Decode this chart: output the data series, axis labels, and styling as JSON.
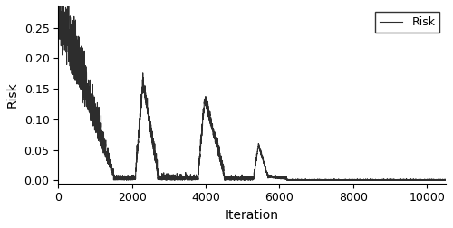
{
  "title": "",
  "xlabel": "Iteration",
  "ylabel": "Risk",
  "legend_label": "Risk",
  "xlim": [
    0,
    10500
  ],
  "ylim": [
    -0.005,
    0.285
  ],
  "yticks": [
    0.0,
    0.05,
    0.1,
    0.15,
    0.2,
    0.25
  ],
  "xticks": [
    0,
    2000,
    4000,
    6000,
    8000,
    10000
  ],
  "line_color": "#2d2d2d",
  "line_width": 0.8,
  "figsize": [
    5.0,
    2.52
  ],
  "dpi": 100,
  "seed": 42,
  "total_iterations": 10500
}
